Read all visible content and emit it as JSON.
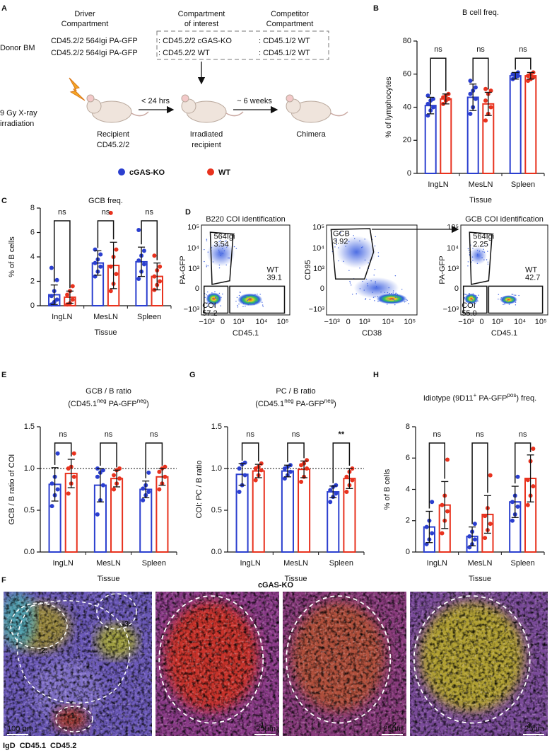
{
  "panel_labels": [
    "A",
    "B",
    "C",
    "D",
    "E",
    "F",
    "G",
    "H"
  ],
  "panel_a": {
    "headers": [
      [
        "Driver",
        "Compartment"
      ],
      [
        "Compartment",
        "of interest"
      ],
      [
        "Competitor",
        "Compartment"
      ]
    ],
    "row_label": "Donor BM",
    "rows": [
      [
        "CD45.2/2 564Igi PA-GFP",
        ": CD45.2/2 cGAS-KO",
        ": CD45.1/2 WT"
      ],
      [
        "CD45.2/2 564Igi PA-GFP",
        ": CD45.2/2 WT",
        ": CD45.1/2 WT"
      ]
    ],
    "irradiation": [
      "9 Gy X-ray",
      "irradiation"
    ],
    "steps": [
      [
        "Recipient",
        "CD45.2/2"
      ],
      [
        "Irradiated",
        "recipient"
      ],
      [
        "Chimera"
      ]
    ],
    "intervals": [
      "< 24 hrs",
      "~ 6 weeks"
    ],
    "legend": [
      {
        "name": "cGAS-KO",
        "color": "#2b3fcf"
      },
      {
        "name": "WT",
        "color": "#e8321e"
      }
    ]
  },
  "chart_data": [
    {
      "type": "bar",
      "title": "B cell freq.",
      "ylabel": "% of lymphocytes",
      "xlabel": "Tissue",
      "categories": [
        "IngLN",
        "MesLN",
        "Spleen"
      ],
      "ylim": [
        0,
        80
      ],
      "yticks": [
        0,
        20,
        40,
        60,
        80
      ],
      "significance": [
        "ns",
        "ns",
        "ns"
      ],
      "series": [
        {
          "values": [
            41,
            46,
            59
          ],
          "errors": [
            5,
            8,
            2
          ],
          "points": [
            [
              35,
              38,
              40,
              42,
              44,
              45,
              47
            ],
            [
              36,
              40,
              45,
              48,
              50,
              52,
              56
            ],
            [
              57,
              58,
              59,
              60,
              60,
              61
            ]
          ]
        },
        {
          "values": [
            45,
            42,
            59
          ],
          "errors": [
            3,
            7,
            2
          ],
          "points": [
            [
              42,
              44,
              45,
              46,
              47,
              48
            ],
            [
              32,
              36,
              40,
              44,
              48,
              50,
              51
            ],
            [
              56,
              57,
              58,
              59,
              60,
              61
            ]
          ]
        }
      ]
    },
    {
      "type": "bar",
      "title": "GCB freq.",
      "ylabel": "% of B cells",
      "xlabel": "Tissue",
      "categories": [
        "IngLN",
        "MesLN",
        "Spleen"
      ],
      "ylim": [
        0,
        8
      ],
      "yticks": [
        0,
        2,
        4,
        6,
        8
      ],
      "significance": [
        "ns",
        "ns",
        "ns"
      ],
      "series": [
        {
          "values": [
            0.9,
            3.5,
            3.6
          ],
          "errors": [
            0.8,
            1.0,
            1.2
          ],
          "points": [
            [
              0.1,
              0.3,
              0.5,
              0.8,
              1.2,
              2.1,
              3.1
            ],
            [
              2.4,
              2.8,
              3.2,
              3.5,
              3.8,
              4.2,
              4.6
            ],
            [
              2.2,
              2.8,
              3.4,
              3.7,
              4.1,
              4.5,
              6.2
            ]
          ]
        },
        {
          "values": [
            0.7,
            3.3,
            2.4
          ],
          "errors": [
            0.5,
            1.9,
            1.1
          ],
          "points": [
            [
              0.1,
              0.2,
              0.5,
              0.9,
              1.2,
              1.6
            ],
            [
              1.2,
              1.8,
              2.6,
              3.2,
              4.0,
              4.6,
              7.6
            ],
            [
              1.3,
              1.7,
              2.0,
              2.4,
              2.9,
              3.2,
              4.1
            ]
          ]
        }
      ]
    },
    {
      "type": "bar",
      "title": "GCB / B ratio",
      "subtitle": [
        {
          "text": "(CD45.1"
        },
        {
          "text": "neg",
          "sup": true
        },
        {
          "text": " PA-GFP"
        },
        {
          "text": "neg",
          "sup": true
        },
        {
          "text": ")"
        }
      ],
      "ylabel": "GCB /  B ratio of COI",
      "xlabel": "Tissue",
      "categories": [
        "IngLN",
        "MesLN",
        "Spleen"
      ],
      "ylim": [
        0,
        1.5
      ],
      "yticks": [
        {
          "value": 0,
          "label": "0.0"
        },
        {
          "value": 0.5,
          "label": "0.5"
        },
        {
          "value": 1,
          "label": "1.0"
        },
        {
          "value": 1.5,
          "label": "1.5"
        }
      ],
      "reference_line": 1,
      "significance": [
        "ns",
        "ns",
        "ns"
      ],
      "series": [
        {
          "values": [
            0.81,
            0.8,
            0.75
          ],
          "errors": [
            0.2,
            0.2,
            0.1
          ],
          "points": [
            [
              0.55,
              0.68,
              0.75,
              0.82,
              0.9,
              1.18
            ],
            [
              0.45,
              0.62,
              0.8,
              0.9,
              0.95,
              0.98,
              1.0
            ],
            [
              0.62,
              0.68,
              0.72,
              0.76,
              0.8,
              0.95
            ]
          ]
        },
        {
          "values": [
            0.94,
            0.88,
            0.9
          ],
          "errors": [
            0.17,
            0.1,
            0.1
          ],
          "points": [
            [
              0.7,
              0.82,
              0.9,
              1.0,
              1.02,
              1.18
            ],
            [
              0.75,
              0.82,
              0.88,
              0.92,
              0.98,
              1.0
            ],
            [
              0.75,
              0.82,
              0.9,
              0.96,
              1.0,
              1.02
            ]
          ]
        }
      ]
    },
    {
      "type": "bar",
      "title": "PC / B ratio",
      "subtitle": [
        {
          "text": "(CD45.1"
        },
        {
          "text": "neg",
          "sup": true
        },
        {
          "text": " PA-GFP"
        },
        {
          "text": "neg",
          "sup": true
        },
        {
          "text": ")"
        }
      ],
      "ylabel": "COI: PC / B ratio",
      "xlabel": "Tissue",
      "categories": [
        "IngLN",
        "MesLN",
        "Spleen"
      ],
      "ylim": [
        0,
        1.5
      ],
      "yticks": [
        {
          "value": 0,
          "label": "0.0"
        },
        {
          "value": 0.5,
          "label": "0.5"
        },
        {
          "value": 1,
          "label": "1.0"
        },
        {
          "value": 1.5,
          "label": "1.5"
        }
      ],
      "reference_line": 1,
      "significance": [
        "ns",
        "ns",
        "**"
      ],
      "series": [
        {
          "values": [
            0.93,
            0.97,
            0.72
          ],
          "errors": [
            0.13,
            0.07,
            0.07
          ],
          "points": [
            [
              0.72,
              0.8,
              0.92,
              1.0,
              1.05,
              1.07
            ],
            [
              0.88,
              0.92,
              0.96,
              1.0,
              1.02,
              1.04
            ],
            [
              0.6,
              0.66,
              0.7,
              0.74,
              0.78,
              0.8
            ]
          ]
        },
        {
          "values": [
            0.97,
            0.99,
            0.88
          ],
          "errors": [
            0.08,
            0.1,
            0.12
          ],
          "points": [
            [
              0.86,
              0.92,
              0.98,
              1.0,
              1.02,
              1.06
            ],
            [
              0.84,
              0.9,
              1.0,
              1.04,
              1.06,
              1.1
            ],
            [
              0.72,
              0.8,
              0.86,
              0.9,
              0.96,
              1.0
            ]
          ]
        }
      ]
    },
    {
      "type": "bar",
      "title": [
        {
          "text": "Idiotype (9D11"
        },
        {
          "text": "+",
          "sup": true
        },
        {
          "text": " PA-GFP"
        },
        {
          "text": "pos",
          "sup": true
        },
        {
          "text": ") freq."
        }
      ],
      "ylabel": "% of B cells",
      "xlabel": "Tissue",
      "categories": [
        "IngLN",
        "MesLN",
        "Spleen"
      ],
      "ylim": [
        0,
        8
      ],
      "yticks": [
        0,
        2,
        4,
        6,
        8
      ],
      "significance": [
        "ns",
        "ns",
        "ns"
      ],
      "series": [
        {
          "values": [
            1.6,
            1.0,
            3.2
          ],
          "errors": [
            1.0,
            0.6,
            1.0
          ],
          "points": [
            [
              0.5,
              0.8,
              1.2,
              1.6,
              2.0,
              3.2
            ],
            [
              0.3,
              0.5,
              0.8,
              1.0,
              1.3,
              1.8
            ],
            [
              2.0,
              2.4,
              2.9,
              3.2,
              3.6,
              4.8
            ]
          ]
        },
        {
          "values": [
            3.0,
            2.4,
            4.7
          ],
          "errors": [
            1.5,
            1.2,
            1.5
          ],
          "points": [
            [
              1.2,
              2.0,
              2.6,
              3.0,
              3.6,
              5.9
            ],
            [
              0.9,
              1.4,
              1.8,
              2.3,
              2.8,
              4.9
            ],
            [
              3.0,
              3.6,
              4.2,
              4.6,
              5.8,
              6.6
            ]
          ]
        }
      ]
    }
  ],
  "panel_d": {
    "yticks": [
      "10⁵",
      "10⁴",
      "10³",
      "0",
      "−10³"
    ],
    "xticks": [
      "−10³",
      "0",
      "10³",
      "10⁴",
      "10⁵"
    ],
    "plots": [
      {
        "title": "B220 COI identification",
        "xlabel": "CD45.1",
        "ylabel": "PA-GFP",
        "gates": [
          {
            "name": "564Igi",
            "value": "3.54"
          },
          {
            "name": "WT",
            "value": "39.1"
          },
          {
            "name": "COI",
            "value": "57.2"
          }
        ]
      },
      {
        "xlabel": "CD38",
        "ylabel": "CD95",
        "gates": [
          {
            "name": "GCB",
            "value": "3.92"
          }
        ]
      },
      {
        "title": "GCB COI identification",
        "xlabel": "CD45.1",
        "ylabel": "PA-GFP",
        "gates": [
          {
            "name": "564Igi",
            "value": "2.25"
          },
          {
            "name": "WT",
            "value": "42.7"
          },
          {
            "name": "COI",
            "value": "55.0"
          }
        ]
      }
    ]
  },
  "panel_f": {
    "title": "cGAS-KO",
    "scale_labels": [
      "100 µm",
      "25µm",
      "25µm",
      "25µm"
    ],
    "regions": [
      "1.",
      "2.",
      "3."
    ],
    "legend": [
      {
        "name": "IgD",
        "color": "#4a86d8"
      },
      {
        "name": "CD45.1",
        "color": "#3aa33a"
      },
      {
        "name": "CD45.2",
        "color": "#c8202a"
      }
    ]
  }
}
